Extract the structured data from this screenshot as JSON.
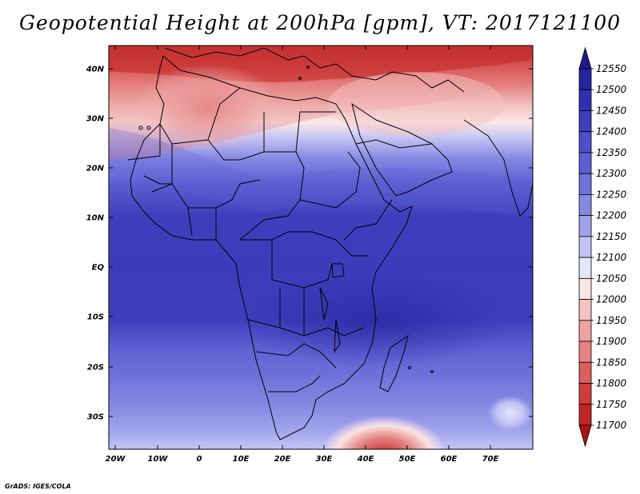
{
  "title": "Geopotential Height at 200hPa [gpm], VT: 2017121100",
  "footer": "GrADS: IGES/COLA",
  "map": {
    "lat_labels": [
      "40N",
      "30N",
      "20N",
      "10N",
      "EQ",
      "10S",
      "20S",
      "30S"
    ],
    "lon_labels": [
      "20W",
      "10W",
      "0",
      "10E",
      "20E",
      "30E",
      "40E",
      "50E",
      "60E",
      "70E"
    ]
  },
  "colorbar": {
    "levels": [
      "12550",
      "12500",
      "12450",
      "12400",
      "12350",
      "12300",
      "12250",
      "12200",
      "12150",
      "12100",
      "12050",
      "12000",
      "11950",
      "11900",
      "11850",
      "11800",
      "11750",
      "11700"
    ],
    "colors": [
      "#1e1a8c",
      "#27249e",
      "#3230b0",
      "#3f3fbe",
      "#4d4fc9",
      "#5d60d2",
      "#7072da",
      "#8688e3",
      "#a0a2ec",
      "#c2c3f4",
      "#e6e6fb",
      "#fbe4e4",
      "#f4c3c3",
      "#eda3a3",
      "#e58282",
      "#dc5f5f",
      "#d13d3d",
      "#c22525",
      "#a81414"
    ]
  }
}
